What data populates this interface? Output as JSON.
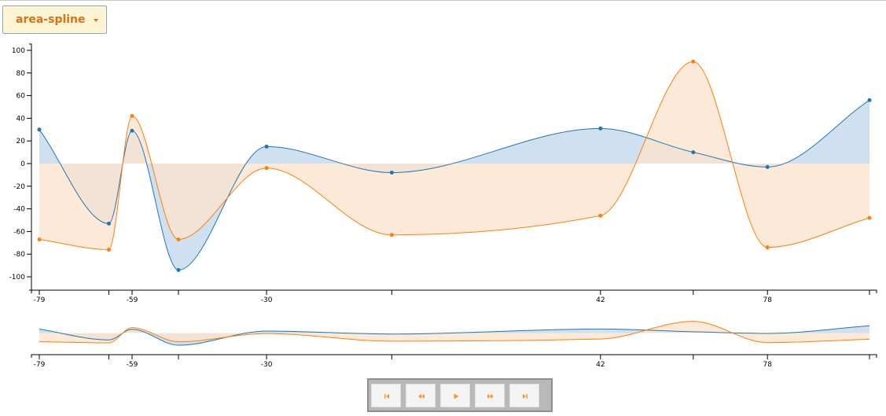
{
  "dropdown": {
    "selected": "area-spline"
  },
  "colors": {
    "series1": "#1f77b4",
    "series2": "#ff7f0e",
    "series1_fill": "#cfe1f0",
    "series2_fill": "#fde3cd",
    "overlap_fill": "#d9cbbf"
  },
  "player": {
    "buttons": [
      {
        "icon": "skip-to-start-icon"
      },
      {
        "icon": "rewind-icon"
      },
      {
        "icon": "play-icon"
      },
      {
        "icon": "fast-forward-icon"
      },
      {
        "icon": "skip-to-end-icon"
      }
    ]
  },
  "chart_data": {
    "type": "area",
    "subtype": "area-spline",
    "x": [
      -79,
      -64,
      -59,
      -49,
      -30,
      -3,
      42,
      62,
      78,
      100
    ],
    "x_tick_labels": [
      "-79",
      "",
      "-59",
      "",
      "-30",
      "",
      "42",
      "",
      "78",
      ""
    ],
    "series": [
      {
        "values": [
          30,
          -53,
          29,
          -94,
          15,
          -8,
          31,
          10,
          -3,
          56
        ],
        "color": "#1f77b4"
      },
      {
        "values": [
          -67,
          -76,
          42,
          -67,
          -4,
          -63,
          -46,
          90,
          -74,
          -48
        ],
        "color": "#ff7f0e"
      }
    ],
    "ylim": [
      -100,
      100
    ],
    "y_ticks": [
      -100,
      -80,
      -60,
      -40,
      -20,
      0,
      20,
      40,
      60,
      80,
      100
    ],
    "grid": false,
    "subchart": true
  }
}
